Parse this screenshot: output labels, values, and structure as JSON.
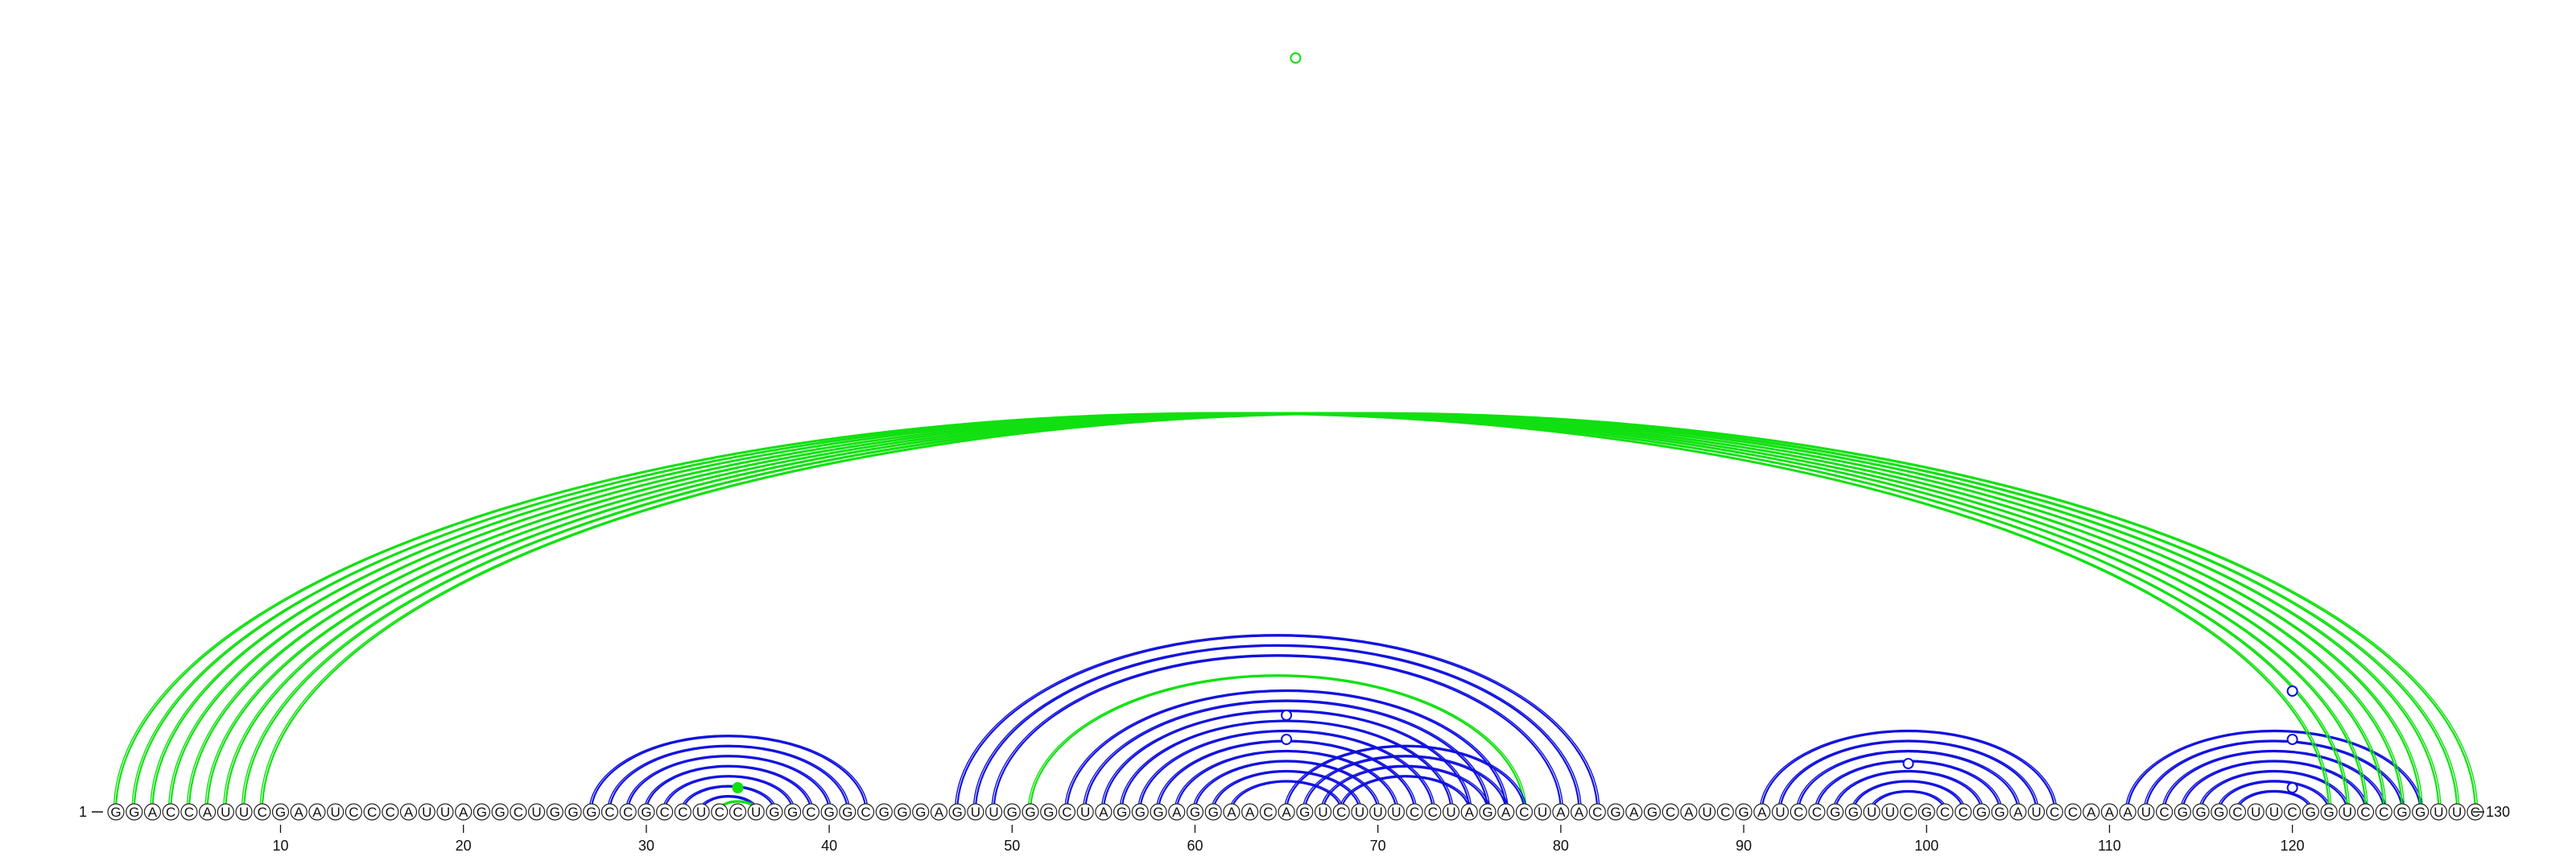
{
  "sequence": "GGACCAUUCGAAUCCCAUUAGGCUGGGCCGCCUCCUGGCGGCGGGAGUUGGGCUAGGGAGGAACAGUCUUUCCUAGACUAACGAGCAUCGAUCCGGUUCGCCGGAUCCAAAUCGGGCUUCGGUCCGGUUC",
  "start_label": "1",
  "end_label": "130",
  "ticks": [
    "10",
    "20",
    "30",
    "40",
    "50",
    "60",
    "70",
    "80",
    "90",
    "100",
    "110",
    "120"
  ],
  "colors": {
    "blue": "#1010e0",
    "green": "#10e010",
    "nucleotide_stroke": "#222222",
    "text": "#111111"
  },
  "helices": [
    {
      "color": "blue",
      "pairs": [
        [
          27,
          42
        ],
        [
          28,
          41
        ],
        [
          29,
          40
        ],
        [
          30,
          39
        ],
        [
          31,
          38
        ],
        [
          32,
          37
        ],
        [
          33,
          36
        ]
      ]
    },
    {
      "color": "green",
      "pairs": [
        [
          34,
          36
        ]
      ]
    },
    {
      "color": "blue",
      "pairs": [
        [
          47,
          82
        ],
        [
          48,
          81
        ],
        [
          49,
          80
        ]
      ]
    },
    {
      "color": "green",
      "pairs": [
        [
          51,
          78
        ]
      ]
    },
    {
      "color": "blue",
      "pairs": [
        [
          53,
          77
        ],
        [
          54,
          76
        ],
        [
          55,
          75
        ],
        [
          56,
          74
        ],
        [
          57,
          73
        ],
        [
          58,
          72
        ],
        [
          59,
          71
        ],
        [
          60,
          70
        ],
        [
          61,
          69
        ],
        [
          62,
          68
        ]
      ]
    },
    {
      "color": "blue",
      "pairs": [
        [
          65,
          78
        ],
        [
          66,
          77
        ],
        [
          67,
          76
        ],
        [
          68,
          75
        ]
      ]
    },
    {
      "color": "blue",
      "pairs": [
        [
          91,
          107
        ],
        [
          92,
          106
        ],
        [
          93,
          105
        ],
        [
          94,
          104
        ],
        [
          95,
          103
        ],
        [
          96,
          102
        ],
        [
          97,
          101
        ]
      ]
    },
    {
      "color": "blue",
      "pairs": [
        [
          111,
          127
        ],
        [
          112,
          126
        ],
        [
          113,
          125
        ],
        [
          114,
          124
        ],
        [
          115,
          123
        ],
        [
          116,
          122
        ],
        [
          117,
          121
        ]
      ]
    },
    {
      "color": "green",
      "pairs": [
        [
          1,
          122
        ],
        [
          2,
          123
        ],
        [
          3,
          124
        ],
        [
          4,
          125
        ],
        [
          5,
          126
        ],
        [
          6,
          127
        ],
        [
          7,
          128
        ],
        [
          8,
          129
        ],
        [
          9,
          130
        ]
      ]
    }
  ],
  "markers": [
    {
      "pos": 35,
      "filled": true,
      "color": "green",
      "level": 1
    },
    {
      "pos": 65,
      "filled": false,
      "color": "blue",
      "level": 4
    },
    {
      "pos": 65,
      "filled": false,
      "color": "blue",
      "level": 3
    },
    {
      "pos": 99,
      "filled": false,
      "color": "blue",
      "level": 2
    },
    {
      "pos": 120,
      "filled": false,
      "color": "blue",
      "level": 5
    },
    {
      "pos": 120,
      "filled": false,
      "color": "blue",
      "level": 3
    },
    {
      "pos": 120,
      "filled": false,
      "color": "blue",
      "level": 1
    },
    {
      "pos": 65.5,
      "filled": false,
      "color": "green",
      "level": 99
    }
  ]
}
